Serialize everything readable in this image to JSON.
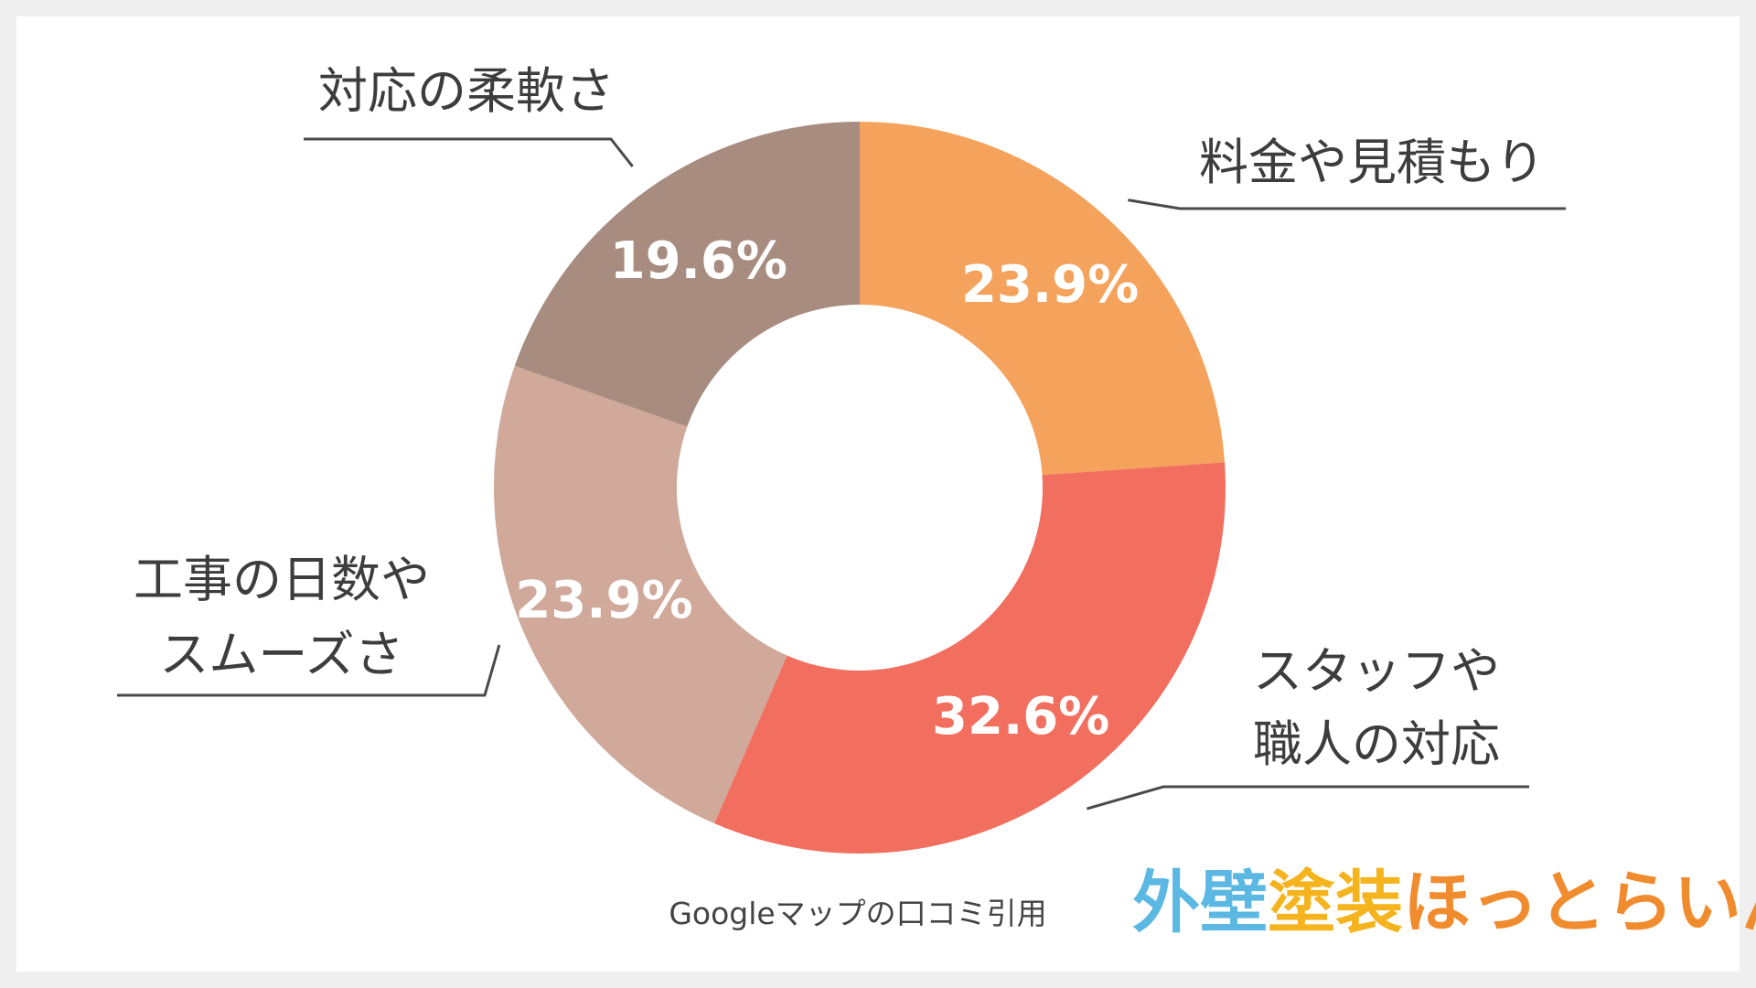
{
  "chart_data": {
    "type": "pie",
    "donut": true,
    "start_angle_deg": 0,
    "direction": "clockwise",
    "slices": [
      {
        "name": "料金や見積もり",
        "label_lines": [
          "料金や見積もり"
        ],
        "value": 23.9,
        "value_label": "23.9%",
        "color": "#F4A25C"
      },
      {
        "name": "スタッフや職人の対応",
        "label_lines": [
          "スタッフや",
          "職人の対応"
        ],
        "value": 32.6,
        "value_label": "32.6%",
        "color": "#F26F5F"
      },
      {
        "name": "工事の日数やスムーズさ",
        "label_lines": [
          "工事の日数や",
          "スムーズさ"
        ],
        "value": 23.9,
        "value_label": "23.9%",
        "color": "#D0A99B"
      },
      {
        "name": "対応の柔軟さ",
        "label_lines": [
          "対応の柔軟さ"
        ],
        "value": 19.6,
        "value_label": "19.6%",
        "color": "#A88C80"
      }
    ]
  },
  "source_note": "Googleマップの口コミ引用",
  "logo": {
    "parts": [
      {
        "text": "外壁",
        "color": "#5BB8E3"
      },
      {
        "text": "塗装",
        "color": "#F5B41E"
      },
      {
        "text": "ほっとらいん",
        "color": "#F08B2E"
      }
    ]
  }
}
